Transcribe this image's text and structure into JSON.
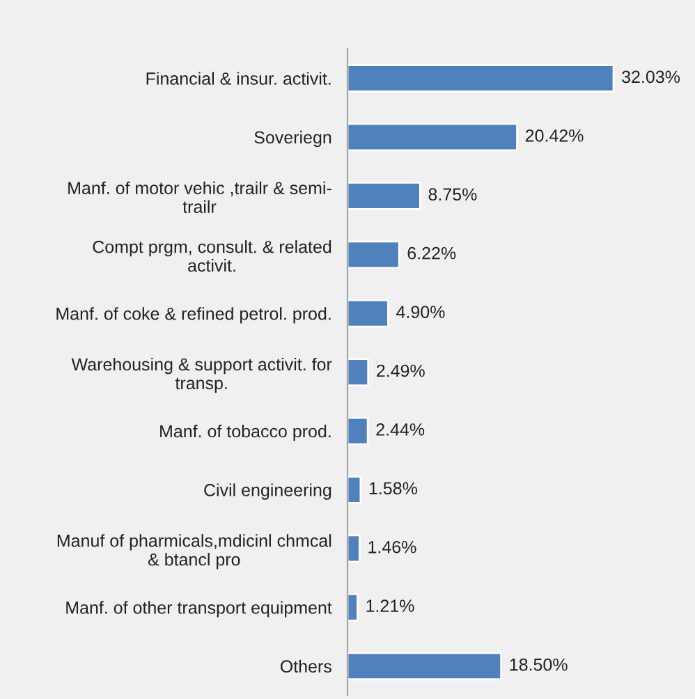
{
  "chart_data": {
    "type": "bar",
    "orientation": "horizontal",
    "categories": [
      "Financial & insur. activit.",
      "Soveriegn",
      "Manf. of motor vehic ,trailr & semi-\ntrailr",
      "Compt prgm, consult. & related\nactivit.",
      "Manf. of coke & refined petrol. prod.",
      "Warehousing & support activit. for\ntransp.",
      "Manf. of tobacco prod.",
      "Civil engineering",
      "Manuf of pharmicals,mdicinl chmcal\n& btancl pro",
      "Manf. of other transport equipment",
      "Others"
    ],
    "values": [
      32.03,
      20.42,
      8.75,
      6.22,
      4.9,
      2.49,
      2.44,
      1.58,
      1.46,
      1.21,
      18.5
    ],
    "value_labels": [
      "32.03%",
      "20.42%",
      "8.75%",
      "6.22%",
      "4.90%",
      "2.49%",
      "2.44%",
      "1.58%",
      "1.46%",
      "1.21%",
      "18.50%"
    ],
    "color": "#4f81bd",
    "grid": false,
    "legend": false
  }
}
